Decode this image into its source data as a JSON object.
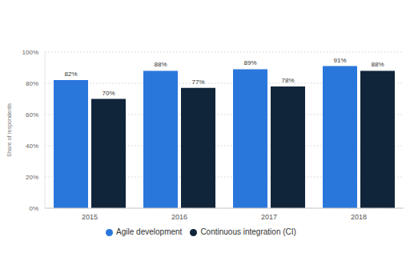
{
  "chart_data": {
    "type": "bar",
    "categories": [
      "2015",
      "2016",
      "2017",
      "2018"
    ],
    "series": [
      {
        "name": "Agile development",
        "color": "#2a77dc",
        "values": [
          82,
          88,
          89,
          91
        ],
        "value_labels": [
          "82%",
          "88%",
          "89%",
          "91%"
        ]
      },
      {
        "name": "Continuous integration (CI)",
        "color": "#11253a",
        "values": [
          70,
          77,
          78,
          88
        ],
        "value_labels": [
          "70%",
          "77%",
          "78%",
          "88%"
        ]
      }
    ],
    "ylabel": "Share of respondents",
    "ylim": [
      0,
      100
    ],
    "yticks": [
      {
        "value": 0,
        "label": "0%"
      },
      {
        "value": 20,
        "label": "20%"
      },
      {
        "value": 40,
        "label": "40%"
      },
      {
        "value": 60,
        "label": "60%"
      },
      {
        "value": 80,
        "label": "80%"
      },
      {
        "value": 100,
        "label": "100%"
      }
    ],
    "grid": true,
    "data_labels": true,
    "legend": "bottom"
  }
}
